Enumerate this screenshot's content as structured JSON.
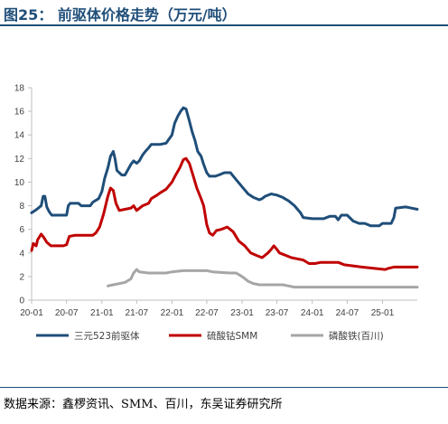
{
  "header": {
    "title": "图25：  前驱体价格走势（万元/吨）"
  },
  "footer": {
    "source": "数据来源：鑫椤资讯、SMM、百川，东吴证券研究所"
  },
  "colors": {
    "axis": "#bfbfbf",
    "title": "#1f4e79"
  },
  "chart_data": {
    "type": "line",
    "title": "前驱体价格走势（万元/吨）",
    "xlabel": "",
    "ylabel": "",
    "ylim": [
      0,
      18
    ],
    "yticks": [
      "0",
      "2",
      "4",
      "6",
      "8",
      "10",
      "12",
      "14",
      "16",
      "18"
    ],
    "xlim": [
      "2020-01",
      "2025-07"
    ],
    "xticks": [
      "20-01",
      "20-07",
      "21-01",
      "21-07",
      "22-01",
      "22-07",
      "23-01",
      "23-07",
      "24-01",
      "24-07",
      "25-01"
    ],
    "grid": false,
    "legend_position": "bottom",
    "series": [
      {
        "name": "三元523前驱体",
        "color": "#1f4e79",
        "points": [
          [
            "2020-01-01",
            7.4
          ],
          [
            "2020-01-20",
            7.6
          ],
          [
            "2020-02-05",
            7.8
          ],
          [
            "2020-02-20",
            8.0
          ],
          [
            "2020-03-01",
            8.8
          ],
          [
            "2020-03-10",
            8.8
          ],
          [
            "2020-03-20",
            7.9
          ],
          [
            "2020-04-01",
            7.5
          ],
          [
            "2020-04-15",
            7.2
          ],
          [
            "2020-06-01",
            7.2
          ],
          [
            "2020-07-01",
            7.2
          ],
          [
            "2020-07-10",
            8.0
          ],
          [
            "2020-07-20",
            8.2
          ],
          [
            "2020-09-01",
            8.2
          ],
          [
            "2020-09-15",
            8.0
          ],
          [
            "2020-11-01",
            8.0
          ],
          [
            "2020-11-15",
            8.3
          ],
          [
            "2020-12-15",
            8.6
          ],
          [
            "2021-01-01",
            9.2
          ],
          [
            "2021-01-15",
            10.3
          ],
          [
            "2021-02-01",
            11.2
          ],
          [
            "2021-02-15",
            12.2
          ],
          [
            "2021-03-01",
            12.6
          ],
          [
            "2021-03-10",
            12.0
          ],
          [
            "2021-03-20",
            11.0
          ],
          [
            "2021-04-01",
            10.8
          ],
          [
            "2021-04-15",
            10.6
          ],
          [
            "2021-05-01",
            10.6
          ],
          [
            "2021-05-15",
            11.0
          ],
          [
            "2021-06-01",
            11.5
          ],
          [
            "2021-06-15",
            11.8
          ],
          [
            "2021-07-01",
            11.6
          ],
          [
            "2021-07-15",
            11.8
          ],
          [
            "2021-08-01",
            12.3
          ],
          [
            "2021-08-15",
            12.6
          ],
          [
            "2021-09-01",
            12.9
          ],
          [
            "2021-09-15",
            13.2
          ],
          [
            "2021-11-01",
            13.2
          ],
          [
            "2021-12-01",
            13.3
          ],
          [
            "2022-01-01",
            14.0
          ],
          [
            "2022-01-15",
            15.0
          ],
          [
            "2022-02-01",
            15.6
          ],
          [
            "2022-02-15",
            16.0
          ],
          [
            "2022-03-01",
            16.3
          ],
          [
            "2022-03-15",
            16.2
          ],
          [
            "2022-04-01",
            15.2
          ],
          [
            "2022-04-15",
            14.3
          ],
          [
            "2022-05-01",
            13.5
          ],
          [
            "2022-05-15",
            12.6
          ],
          [
            "2022-06-01",
            12.2
          ],
          [
            "2022-06-15",
            11.5
          ],
          [
            "2022-07-01",
            10.8
          ],
          [
            "2022-07-15",
            10.5
          ],
          [
            "2022-08-15",
            10.5
          ],
          [
            "2022-09-01",
            10.6
          ],
          [
            "2022-10-01",
            10.8
          ],
          [
            "2022-11-01",
            10.8
          ],
          [
            "2022-12-01",
            10.2
          ],
          [
            "2023-01-01",
            9.6
          ],
          [
            "2023-02-01",
            9.0
          ],
          [
            "2023-03-01",
            8.7
          ],
          [
            "2023-04-01",
            8.5
          ],
          [
            "2023-04-15",
            8.6
          ],
          [
            "2023-05-01",
            8.8
          ],
          [
            "2023-06-01",
            9.0
          ],
          [
            "2023-07-01",
            8.9
          ],
          [
            "2023-08-01",
            8.7
          ],
          [
            "2023-09-01",
            8.4
          ],
          [
            "2023-10-01",
            8.0
          ],
          [
            "2023-11-01",
            7.4
          ],
          [
            "2023-11-15",
            7.0
          ],
          [
            "2024-01-01",
            6.9
          ],
          [
            "2024-03-01",
            6.9
          ],
          [
            "2024-04-01",
            7.1
          ],
          [
            "2024-05-01",
            7.1
          ],
          [
            "2024-05-15",
            6.8
          ],
          [
            "2024-06-01",
            7.2
          ],
          [
            "2024-07-01",
            7.2
          ],
          [
            "2024-08-01",
            6.7
          ],
          [
            "2024-09-01",
            6.5
          ],
          [
            "2024-10-01",
            6.5
          ],
          [
            "2024-11-01",
            6.3
          ],
          [
            "2024-12-15",
            6.3
          ],
          [
            "2025-01-01",
            6.5
          ],
          [
            "2025-02-15",
            6.5
          ],
          [
            "2025-03-01",
            7.0
          ],
          [
            "2025-03-10",
            7.8
          ],
          [
            "2025-05-01",
            7.9
          ],
          [
            "2025-06-01",
            7.8
          ],
          [
            "2025-07-01",
            7.7
          ]
        ]
      },
      {
        "name": "硫酸钴SMM",
        "color": "#c00000",
        "points": [
          [
            "2020-01-01",
            4.2
          ],
          [
            "2020-01-10",
            4.8
          ],
          [
            "2020-01-25",
            4.6
          ],
          [
            "2020-02-01",
            5.1
          ],
          [
            "2020-02-20",
            5.6
          ],
          [
            "2020-03-05",
            5.3
          ],
          [
            "2020-03-20",
            4.9
          ],
          [
            "2020-04-10",
            4.6
          ],
          [
            "2020-06-15",
            4.6
          ],
          [
            "2020-07-01",
            4.7
          ],
          [
            "2020-07-15",
            5.4
          ],
          [
            "2020-08-15",
            5.5
          ],
          [
            "2020-11-15",
            5.5
          ],
          [
            "2020-12-01",
            5.7
          ],
          [
            "2020-12-20",
            6.2
          ],
          [
            "2021-01-10",
            7.3
          ],
          [
            "2021-02-01",
            8.8
          ],
          [
            "2021-02-15",
            9.5
          ],
          [
            "2021-03-01",
            9.3
          ],
          [
            "2021-03-15",
            8.2
          ],
          [
            "2021-04-01",
            7.6
          ],
          [
            "2021-05-01",
            7.7
          ],
          [
            "2021-06-01",
            7.8
          ],
          [
            "2021-06-15",
            8.0
          ],
          [
            "2021-07-01",
            7.6
          ],
          [
            "2021-08-01",
            8.0
          ],
          [
            "2021-09-01",
            8.2
          ],
          [
            "2021-09-15",
            8.6
          ],
          [
            "2021-10-15",
            8.9
          ],
          [
            "2021-11-01",
            9.1
          ],
          [
            "2021-12-01",
            9.4
          ],
          [
            "2022-01-01",
            10.0
          ],
          [
            "2022-01-20",
            10.6
          ],
          [
            "2022-02-10",
            11.2
          ],
          [
            "2022-03-01",
            11.9
          ],
          [
            "2022-03-15",
            12.0
          ],
          [
            "2022-04-01",
            11.6
          ],
          [
            "2022-04-20",
            10.6
          ],
          [
            "2022-05-10",
            9.5
          ],
          [
            "2022-06-01",
            8.6
          ],
          [
            "2022-06-15",
            8.0
          ],
          [
            "2022-07-01",
            6.4
          ],
          [
            "2022-07-15",
            5.7
          ],
          [
            "2022-08-01",
            5.5
          ],
          [
            "2022-08-20",
            5.9
          ],
          [
            "2022-09-15",
            6.0
          ],
          [
            "2022-10-15",
            6.2
          ],
          [
            "2022-11-15",
            5.8
          ],
          [
            "2022-12-15",
            5.0
          ],
          [
            "2023-01-15",
            4.6
          ],
          [
            "2023-02-15",
            4.0
          ],
          [
            "2023-03-15",
            3.8
          ],
          [
            "2023-04-15",
            3.6
          ],
          [
            "2023-05-15",
            4.0
          ],
          [
            "2023-06-01",
            4.3
          ],
          [
            "2023-06-15",
            4.6
          ],
          [
            "2023-07-01",
            4.3
          ],
          [
            "2023-07-15",
            4.0
          ],
          [
            "2023-08-15",
            3.8
          ],
          [
            "2023-09-15",
            3.6
          ],
          [
            "2023-10-15",
            3.5
          ],
          [
            "2023-11-15",
            3.4
          ],
          [
            "2023-12-15",
            3.1
          ],
          [
            "2024-01-15",
            3.1
          ],
          [
            "2024-02-15",
            3.2
          ],
          [
            "2024-04-01",
            3.2
          ],
          [
            "2024-05-15",
            3.2
          ],
          [
            "2024-06-15",
            3.0
          ],
          [
            "2024-08-01",
            2.9
          ],
          [
            "2024-09-15",
            2.8
          ],
          [
            "2024-11-15",
            2.7
          ],
          [
            "2025-01-15",
            2.6
          ],
          [
            "2025-02-01",
            2.7
          ],
          [
            "2025-03-01",
            2.8
          ],
          [
            "2025-05-01",
            2.8
          ],
          [
            "2025-07-01",
            2.8
          ]
        ]
      },
      {
        "name": "磷酸铁(百川)",
        "color": "#a6a6a6",
        "points": [
          [
            "2021-02-01",
            1.2
          ],
          [
            "2021-03-01",
            1.3
          ],
          [
            "2021-04-01",
            1.4
          ],
          [
            "2021-05-01",
            1.5
          ],
          [
            "2021-06-01",
            1.8
          ],
          [
            "2021-06-15",
            2.3
          ],
          [
            "2021-07-01",
            2.6
          ],
          [
            "2021-07-15",
            2.4
          ],
          [
            "2021-09-01",
            2.3
          ],
          [
            "2021-12-01",
            2.3
          ],
          [
            "2022-01-01",
            2.4
          ],
          [
            "2022-03-01",
            2.5
          ],
          [
            "2022-06-01",
            2.5
          ],
          [
            "2022-07-01",
            2.5
          ],
          [
            "2022-08-01",
            2.4
          ],
          [
            "2022-11-01",
            2.3
          ],
          [
            "2022-12-01",
            2.3
          ],
          [
            "2023-01-01",
            2.0
          ],
          [
            "2023-02-01",
            1.6
          ],
          [
            "2023-03-01",
            1.4
          ],
          [
            "2023-04-01",
            1.3
          ],
          [
            "2023-06-01",
            1.3
          ],
          [
            "2023-08-01",
            1.3
          ],
          [
            "2023-09-01",
            1.2
          ],
          [
            "2023-10-01",
            1.1
          ],
          [
            "2024-01-01",
            1.1
          ],
          [
            "2024-04-01",
            1.1
          ],
          [
            "2024-07-01",
            1.1
          ],
          [
            "2025-01-01",
            1.1
          ],
          [
            "2025-07-01",
            1.1
          ]
        ]
      }
    ]
  }
}
